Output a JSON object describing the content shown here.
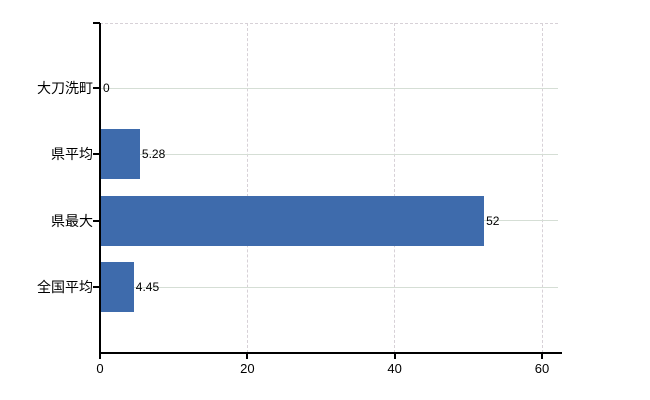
{
  "chart_data": {
    "type": "bar",
    "orientation": "horizontal",
    "categories": [
      "大刀洗町",
      "県平均",
      "県最大",
      "全国平均"
    ],
    "values": [
      0,
      5.28,
      52,
      4.45
    ],
    "value_labels": [
      "0",
      "5.28",
      "52",
      "4.45"
    ],
    "xticks": [
      0,
      20,
      40,
      60
    ],
    "xtick_labels": [
      "0",
      "20",
      "40",
      "60"
    ],
    "xlim": [
      0,
      62
    ],
    "grid": true,
    "legend_position": "none",
    "bar_color": "#3e6bac",
    "axis_color": "#000000",
    "vertical_grid_color": "#d7d1d7",
    "horizontal_grid_color": "#d5ded5"
  }
}
